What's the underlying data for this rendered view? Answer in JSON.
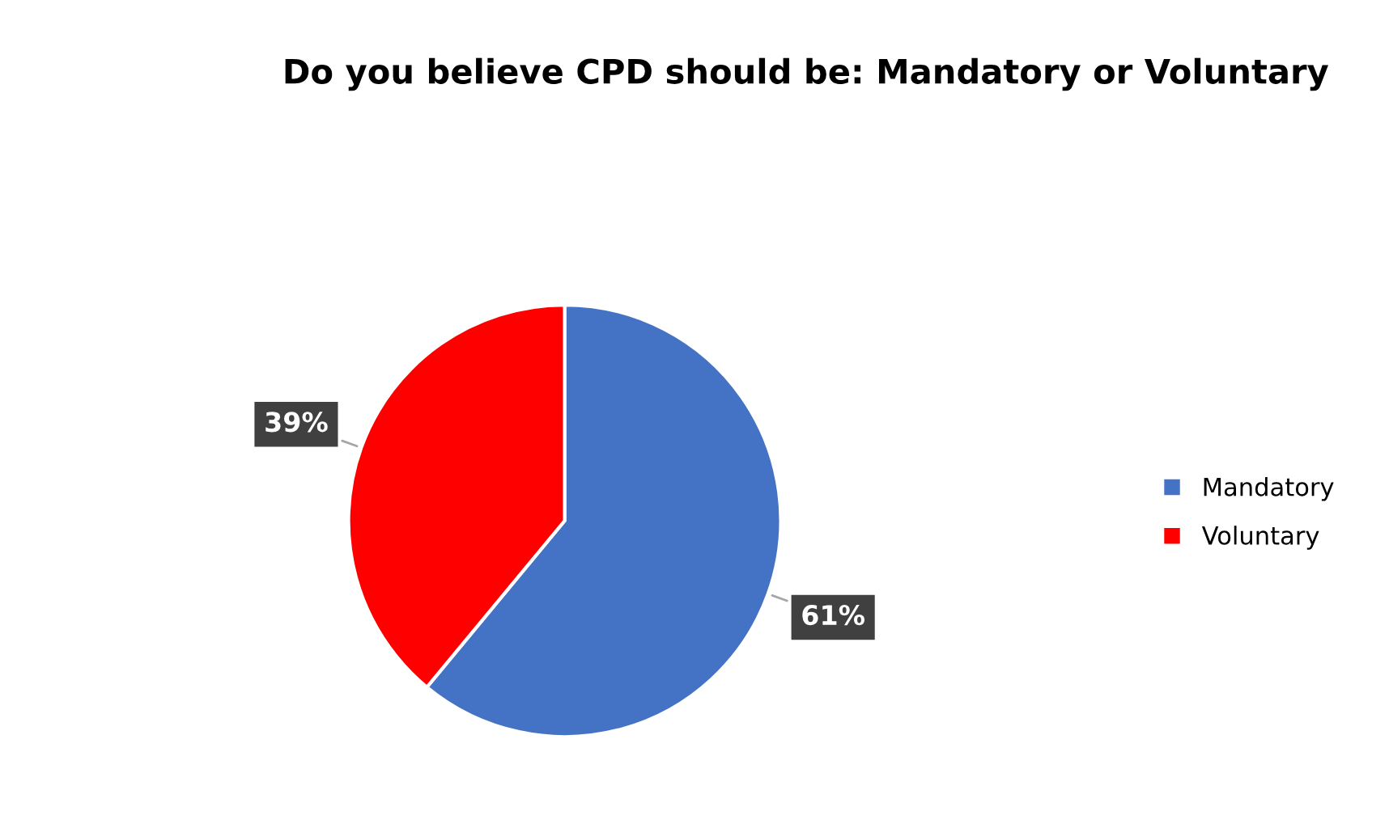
{
  "chart_data": {
    "type": "pie",
    "title": "Do you believe CPD should be: Mandatory or Voluntary",
    "categories": [
      "Mandatory",
      "Voluntary"
    ],
    "values": [
      61,
      39
    ],
    "colors": [
      "#4472c4",
      "#ff0000"
    ],
    "value_labels": [
      "61%",
      "39%"
    ],
    "legend": "right"
  }
}
